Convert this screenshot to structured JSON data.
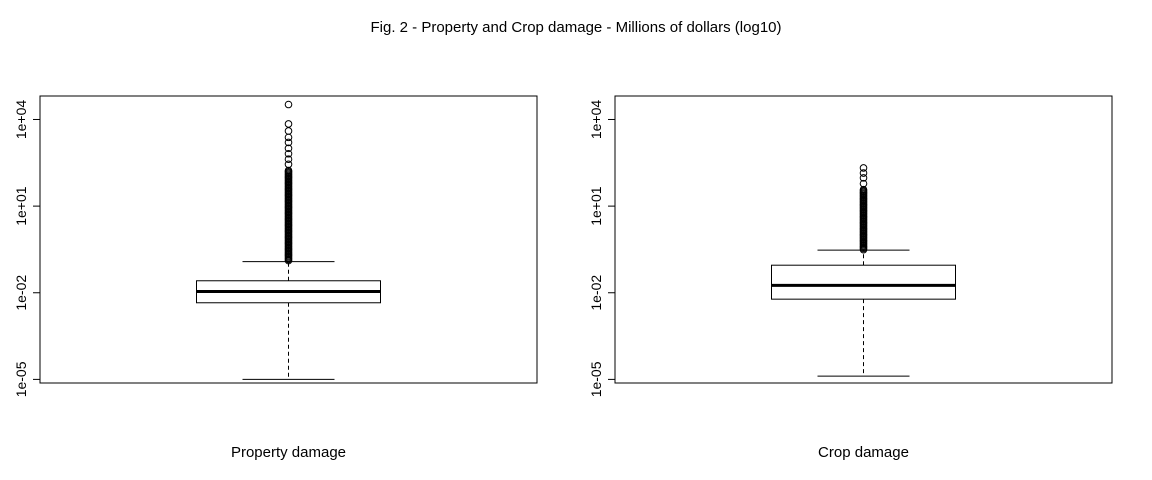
{
  "figure": {
    "title": "Fig. 2 - Property and Crop damage - Millions of dollars (log10)"
  },
  "chart_data": [
    {
      "type": "box",
      "xlabel": "Property damage",
      "ylabel": "",
      "y_scale": "log10",
      "ylim": [
        7.5e-06,
        65000
      ],
      "yticks": [
        1e-05,
        0.01,
        10,
        10000
      ],
      "ytick_labels": [
        "1e-05",
        "1e-02",
        "1e+01",
        "1e+04"
      ],
      "box": {
        "whisker_low": 1e-05,
        "q1": 0.0045,
        "median": 0.011,
        "q3": 0.026,
        "whisker_high": 0.12
      },
      "outliers": {
        "dense_band": [
          0.13,
          180
        ],
        "points": [
          280,
          420,
          650,
          1000,
          1600,
          2400,
          4000,
          7000,
          33000
        ]
      }
    },
    {
      "type": "box",
      "xlabel": "Crop damage",
      "ylabel": "",
      "y_scale": "log10",
      "ylim": [
        7.5e-06,
        65000
      ],
      "yticks": [
        1e-05,
        0.01,
        10,
        10000
      ],
      "ytick_labels": [
        "1e-05",
        "1e-02",
        "1e+01",
        "1e+04"
      ],
      "box": {
        "whisker_low": 1.3e-05,
        "q1": 0.006,
        "median": 0.018,
        "q3": 0.09,
        "whisker_high": 0.3
      },
      "outliers": {
        "dense_band": [
          0.31,
          40
        ],
        "points": [
          60,
          95,
          140,
          210
        ]
      }
    }
  ]
}
